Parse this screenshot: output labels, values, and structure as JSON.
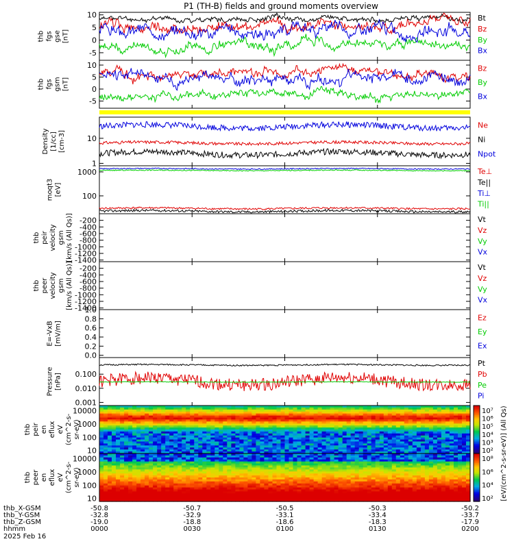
{
  "title": "P1 (TH-B) fields and ground moments overview",
  "colors": {
    "black": "#000000",
    "red": "#e00000",
    "green": "#00cc00",
    "blue": "#0000dd",
    "yellow": "#ffff00"
  },
  "chart_data": {
    "type": "line",
    "x_ticks": [
      "0000",
      "0030",
      "0100",
      "0130",
      "0200"
    ],
    "x_range_minutes": [
      0,
      120
    ],
    "date": "2025 Feb 16",
    "time_label": "hhmm",
    "ephemeris": [
      {
        "label": "thb_X-GSM",
        "values": [
          "-50.8",
          "-50.7",
          "-50.5",
          "-50.3",
          "-50.2"
        ]
      },
      {
        "label": "thb_Y-GSM",
        "values": [
          "-32.8",
          "-32.9",
          "-33.1",
          "-33.4",
          "-33.7"
        ]
      },
      {
        "label": "thb_Z-GSM",
        "values": [
          "-19.0",
          "-18.8",
          "-18.6",
          "-18.3",
          "-17.9"
        ]
      }
    ],
    "panels": [
      {
        "id": "fgs-gse",
        "ylabel": [
          "thb",
          "fgs",
          "gse",
          "[nT]"
        ],
        "scale": "linear",
        "yrange": [
          -8,
          11
        ],
        "ticks": [
          "10",
          "5",
          "0",
          "-5"
        ],
        "tick_values": [
          10,
          5,
          0,
          -5
        ],
        "series": [
          {
            "name": "Bt",
            "color": "#000000",
            "level": 8.5,
            "noise": 1.2,
            "seed": 11
          },
          {
            "name": "Bz",
            "color": "#e00000",
            "level": 5.5,
            "noise": 2.5,
            "seed": 12
          },
          {
            "name": "By",
            "color": "#00cc00",
            "level": -2.5,
            "noise": 2.2,
            "seed": 13
          },
          {
            "name": "Bx",
            "color": "#0000dd",
            "level": 3.5,
            "noise": 2.8,
            "seed": 14
          }
        ]
      },
      {
        "id": "fgs-gsm",
        "ylabel": [
          "thb",
          "fgs",
          "gsm",
          "[nT]"
        ],
        "scale": "linear",
        "yrange": [
          -8,
          12
        ],
        "ticks": [
          "10",
          "5",
          "0",
          "-5"
        ],
        "tick_values": [
          10,
          5,
          0,
          -5
        ],
        "series": [
          {
            "name": "Bz",
            "color": "#e00000",
            "level": 7,
            "noise": 2.3,
            "seed": 21
          },
          {
            "name": "By",
            "color": "#00cc00",
            "level": -2.5,
            "noise": 2.0,
            "seed": 22
          },
          {
            "name": "Bx",
            "color": "#0000dd",
            "level": 5,
            "noise": 2.8,
            "seed": 23
          }
        ]
      },
      {
        "id": "mode-bar",
        "type": "bar",
        "color": "#ffff00"
      },
      {
        "id": "density",
        "ylabel": [
          "Density",
          "[1/cc]",
          "[cm-3]"
        ],
        "scale": "log",
        "yrange": [
          0.8,
          70
        ],
        "ticks": [
          "10",
          "1"
        ],
        "tick_values": [
          10,
          1
        ],
        "series": [
          {
            "name": "Ne",
            "color": "#e00000",
            "level": 6.5,
            "noise": 0.06,
            "seed": 31
          },
          {
            "name": "Ni",
            "color": "#000000",
            "level": 2.5,
            "noise": 0.12,
            "seed": 32
          },
          {
            "name": "Npot",
            "color": "#0000dd",
            "level": 30,
            "noise": 0.12,
            "seed": 33
          }
        ]
      },
      {
        "id": "moqt3",
        "ylabel": [
          "moqt3",
          "[eV]"
        ],
        "scale": "log",
        "yrange": [
          18,
          1800
        ],
        "ticks": [
          "1000",
          "100"
        ],
        "tick_values": [
          1000,
          100
        ],
        "series": [
          {
            "name": "Te⊥",
            "color": "#e00000",
            "level": 30,
            "noise": 0.04,
            "seed": 41
          },
          {
            "name": "Te||",
            "color": "#000000",
            "level": 23,
            "noise": 0.05,
            "seed": 42
          },
          {
            "name": "Ti⊥",
            "color": "#0000dd",
            "level": 1350,
            "noise": 0.02,
            "seed": 43
          },
          {
            "name": "Ti||",
            "color": "#00cc00",
            "level": 1150,
            "noise": 0.02,
            "seed": 44
          }
        ]
      },
      {
        "id": "peir-vel",
        "ylabel": [
          "thb",
          "peir",
          "velocity",
          "gsm",
          "[km/s (All Qs)]"
        ],
        "scale": "linear",
        "yrange": [
          -1450,
          0
        ],
        "ticks": [
          "-200",
          "-400",
          "-600",
          "-800",
          "-1000",
          "-1200",
          "-1400"
        ],
        "tick_values": [
          -200,
          -400,
          -600,
          -800,
          -1000,
          -1200,
          -1400
        ],
        "series": [
          {
            "name": "Vt",
            "color": "#000000"
          },
          {
            "name": "Vz",
            "color": "#e00000"
          },
          {
            "name": "Vy",
            "color": "#00cc00"
          },
          {
            "name": "Vx",
            "color": "#0000dd"
          }
        ]
      },
      {
        "id": "peer-vel",
        "ylabel": [
          "thb",
          "peer",
          "velocity",
          "gsm",
          "[km/s (All Qs)]"
        ],
        "scale": "linear",
        "yrange": [
          -1450,
          0
        ],
        "ticks": [
          "-200",
          "-400",
          "-600",
          "-800",
          "-1000",
          "-1200",
          "-1400"
        ],
        "tick_values": [
          -200,
          -400,
          -600,
          -800,
          -1000,
          -1200,
          -1400
        ],
        "series": [
          {
            "name": "Vt",
            "color": "#000000"
          },
          {
            "name": "Vz",
            "color": "#e00000"
          },
          {
            "name": "Vy",
            "color": "#00cc00"
          },
          {
            "name": "Vx",
            "color": "#0000dd"
          }
        ]
      },
      {
        "id": "efield",
        "ylabel": [
          "E=-VxB",
          "[mV/m]"
        ],
        "scale": "linear",
        "yrange": [
          -0.05,
          1.0
        ],
        "ticks": [
          "1.0",
          "0.8",
          "0.6",
          "0.4",
          "0.2",
          "0.0"
        ],
        "tick_values": [
          1.0,
          0.8,
          0.6,
          0.4,
          0.2,
          0.0
        ],
        "series": [
          {
            "name": "Ez",
            "color": "#e00000"
          },
          {
            "name": "Ey",
            "color": "#00cc00"
          },
          {
            "name": "Ex",
            "color": "#0000dd"
          }
        ]
      },
      {
        "id": "pressure",
        "ylabel": [
          "Pressure",
          "[nPa]"
        ],
        "scale": "log",
        "yrange": [
          0.0006,
          1.5
        ],
        "ticks": [
          "0.100",
          "0.010",
          "0.001"
        ],
        "tick_values": [
          0.1,
          0.01,
          0.001
        ],
        "series": [
          {
            "name": "Pt",
            "color": "#000000",
            "level": 0.45,
            "noise": 0.05,
            "seed": 51
          },
          {
            "name": "Pb",
            "color": "#e00000",
            "level": 0.03,
            "noise": 0.45,
            "seed": 52
          },
          {
            "name": "Pe",
            "color": "#00cc00",
            "level": 0.028,
            "noise": 0.02,
            "seed": 53
          },
          {
            "name": "Pi",
            "color": "#0000dd"
          }
        ]
      },
      {
        "id": "peir-eflux",
        "type": "spectrogram",
        "ylabel": [
          "thb",
          "peir",
          "en",
          "eflux",
          "eV",
          "(cm^2-s-",
          "sr-eV)"
        ],
        "scale": "log",
        "yrange": [
          6,
          25000
        ],
        "ticks": [
          "10000",
          "1000",
          "100",
          "10"
        ],
        "tick_values": [
          10000,
          1000,
          100,
          10
        ],
        "colorbar_ticks": [
          "10⁷",
          "10⁶",
          "10⁵",
          "10⁴",
          "10³",
          "10²"
        ]
      },
      {
        "id": "peer-eflux",
        "type": "spectrogram",
        "ylabel": [
          "thb",
          "peer",
          "en",
          "eflux",
          "eV",
          "(cm^2-s-",
          "sr-eV)"
        ],
        "scale": "log",
        "yrange": [
          6,
          25000
        ],
        "ticks": [
          "10000",
          "1000",
          "100",
          "10"
        ],
        "tick_values": [
          10000,
          1000,
          100,
          10
        ],
        "colorbar_ticks": [
          "10⁸",
          "10⁶",
          "10⁴",
          "10²"
        ]
      }
    ],
    "colorbar_label": "[eV/(cm^2-s-sr-eV)] (All Qs)"
  }
}
